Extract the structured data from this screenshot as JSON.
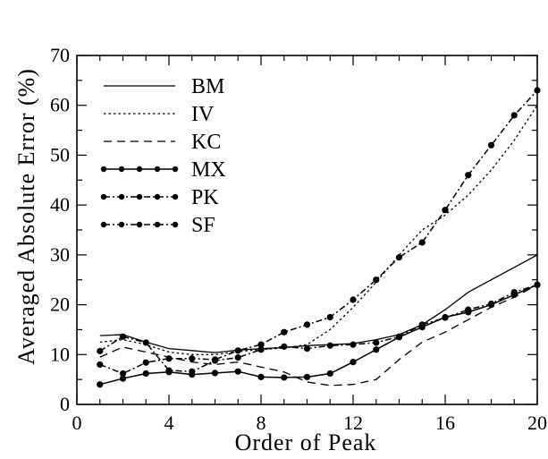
{
  "chart_data": {
    "type": "line",
    "xlabel": "Order of Peak",
    "ylabel": "Averaged Absolute Error (%)",
    "xlim": [
      0,
      20
    ],
    "ylim": [
      0,
      70
    ],
    "xticks": [
      0,
      4,
      8,
      12,
      16,
      20
    ],
    "yticks": [
      0,
      10,
      20,
      30,
      40,
      50,
      60,
      70
    ],
    "grid": false,
    "legend_position": "top-left",
    "series": [
      {
        "name": "BM",
        "style": "solid",
        "markers": false,
        "x": [
          1,
          2,
          3,
          4,
          5,
          6,
          7,
          8,
          9,
          10,
          11,
          12,
          13,
          14,
          15,
          16,
          17,
          18,
          19,
          20
        ],
        "y": [
          13.8,
          14.0,
          12.5,
          11.2,
          10.8,
          10.4,
          10.9,
          11.2,
          11.4,
          11.8,
          12.0,
          12.2,
          13.0,
          14.0,
          16.0,
          19.0,
          22.5,
          25.0,
          27.5,
          30.0
        ]
      },
      {
        "name": "IV",
        "style": "dotted",
        "markers": false,
        "x": [
          1,
          2,
          3,
          4,
          5,
          6,
          7,
          8,
          9,
          10,
          11,
          12,
          13,
          14,
          15,
          16,
          17,
          18,
          19,
          20
        ],
        "y": [
          12.5,
          13.0,
          12.0,
          10.5,
          10.0,
          10.0,
          10.6,
          11.0,
          11.3,
          12.0,
          15.0,
          19.5,
          24.5,
          30.0,
          35.0,
          38.0,
          42.0,
          47.0,
          53.0,
          60.0
        ]
      },
      {
        "name": "KC",
        "style": "dashed",
        "markers": false,
        "x": [
          1,
          2,
          3,
          4,
          5,
          6,
          7,
          8,
          9,
          10,
          11,
          12,
          13,
          14,
          15,
          16,
          17,
          18,
          19,
          20
        ],
        "y": [
          9.5,
          11.5,
          10.5,
          9.5,
          8.5,
          8.0,
          8.5,
          7.5,
          6.5,
          4.5,
          3.8,
          4.0,
          5.0,
          9.0,
          12.5,
          14.5,
          17.0,
          19.5,
          21.5,
          24.0
        ]
      },
      {
        "name": "MX",
        "style": "solid",
        "markers": true,
        "x": [
          1,
          2,
          3,
          4,
          5,
          6,
          7,
          8,
          9,
          10,
          11,
          12,
          13,
          14,
          15,
          16,
          17,
          18,
          19,
          20
        ],
        "y": [
          4.0,
          5.2,
          6.2,
          6.5,
          6.0,
          6.3,
          6.6,
          5.5,
          5.4,
          5.5,
          6.2,
          8.5,
          11.0,
          13.5,
          15.5,
          17.5,
          18.5,
          20.0,
          22.0,
          24.0
        ]
      },
      {
        "name": "PK",
        "style": "dash-dot",
        "markers": true,
        "x": [
          1,
          2,
          3,
          4,
          5,
          6,
          7,
          8,
          9,
          10,
          11,
          12,
          13,
          14,
          15,
          16,
          17,
          18,
          19,
          20
        ],
        "y": [
          8.0,
          6.2,
          8.4,
          9.2,
          9.2,
          9.0,
          10.8,
          12.0,
          14.5,
          16.0,
          17.5,
          21.0,
          25.0,
          29.5,
          32.5,
          39.0,
          46.0,
          52.0,
          58.0,
          63.0
        ]
      },
      {
        "name": "SF",
        "style": "dash-dot",
        "markers": true,
        "x": [
          1,
          2,
          3,
          4,
          5,
          6,
          7,
          8,
          9,
          10,
          11,
          12,
          13,
          14,
          15,
          16,
          17,
          18,
          19,
          20
        ],
        "y": [
          10.7,
          13.6,
          12.4,
          6.8,
          6.6,
          8.8,
          9.4,
          11.0,
          11.6,
          11.2,
          11.8,
          12.0,
          12.4,
          13.6,
          16.0,
          17.4,
          19.0,
          20.2,
          22.5,
          24.0
        ]
      }
    ]
  }
}
